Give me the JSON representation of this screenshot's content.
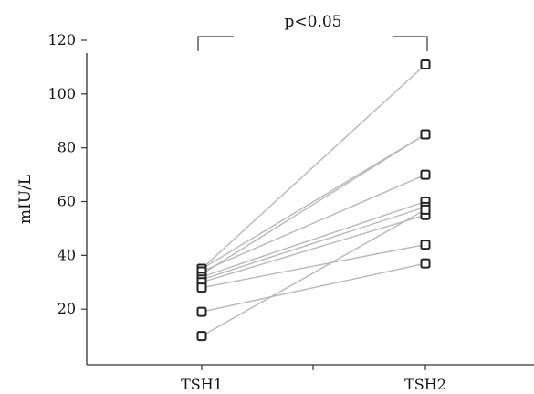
{
  "chart_data": {
    "type": "line",
    "categories": [
      "TSH1",
      "TSH2"
    ],
    "ylabel": "mIU/L",
    "ylim": [
      0,
      120
    ],
    "yticks": [
      20,
      40,
      60,
      80,
      100,
      120
    ],
    "annotation": "p<0.05",
    "colors": {
      "line": "#b8b8b8",
      "marker": "#222222",
      "axis": "#333333"
    },
    "pairs": [
      {
        "values": [
          35,
          111
        ]
      },
      {
        "values": [
          35,
          85
        ]
      },
      {
        "values": [
          33,
          85
        ]
      },
      {
        "values": [
          34,
          70
        ]
      },
      {
        "values": [
          32,
          60
        ]
      },
      {
        "values": [
          31,
          58
        ]
      },
      {
        "values": [
          30,
          55
        ]
      },
      {
        "values": [
          28,
          44
        ]
      },
      {
        "values": [
          19,
          37
        ]
      },
      {
        "values": [
          10,
          57
        ]
      }
    ]
  }
}
